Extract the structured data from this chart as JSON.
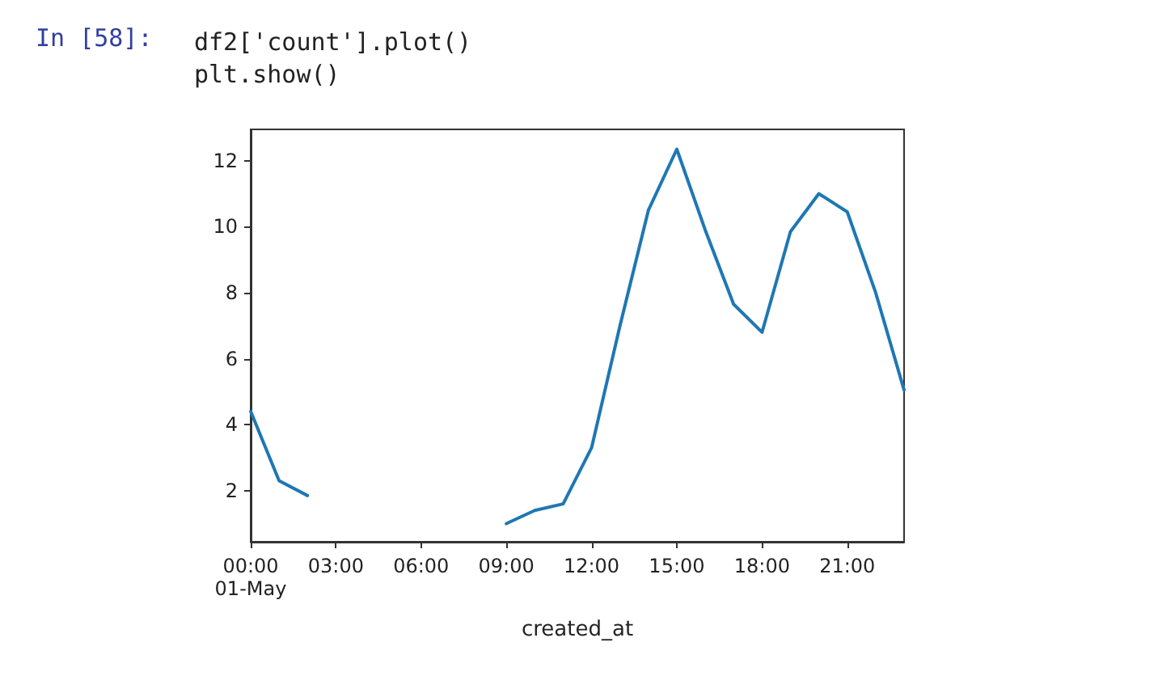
{
  "chart_data": {
    "type": "line",
    "xlabel": "created_at",
    "annotations": [
      "In [58]:",
      "df2['count'].plot()\nplt.show()"
    ],
    "x": [
      0,
      1,
      2,
      3,
      4,
      5,
      6,
      7,
      8,
      9,
      10,
      11,
      12,
      13,
      14,
      15,
      16,
      17,
      18,
      19,
      20,
      21,
      22,
      23
    ],
    "series": [
      {
        "color": "#1f77b4",
        "values": [
          4.4,
          2.3,
          1.85,
          null,
          null,
          null,
          null,
          null,
          null,
          1.0,
          1.4,
          1.6,
          3.3,
          7.0,
          10.5,
          12.35,
          9.9,
          7.65,
          6.8,
          9.85,
          11.0,
          10.45,
          8.0,
          5.05
        ]
      }
    ],
    "xlim": [
      0,
      23
    ],
    "xticks": [
      {
        "value": 0,
        "label": "00:00\n01-May"
      },
      {
        "value": 3,
        "label": "03:00"
      },
      {
        "value": 6,
        "label": "06:00"
      },
      {
        "value": 9,
        "label": "09:00"
      },
      {
        "value": 12,
        "label": "12:00"
      },
      {
        "value": 15,
        "label": "15:00"
      },
      {
        "value": 18,
        "label": "18:00"
      },
      {
        "value": 21,
        "label": "21:00"
      }
    ],
    "ylim": [
      0.45,
      12.95
    ],
    "yticks": [
      2,
      4,
      6,
      8,
      10,
      12
    ],
    "grid": false,
    "marker": "none",
    "line_style": "solid"
  }
}
